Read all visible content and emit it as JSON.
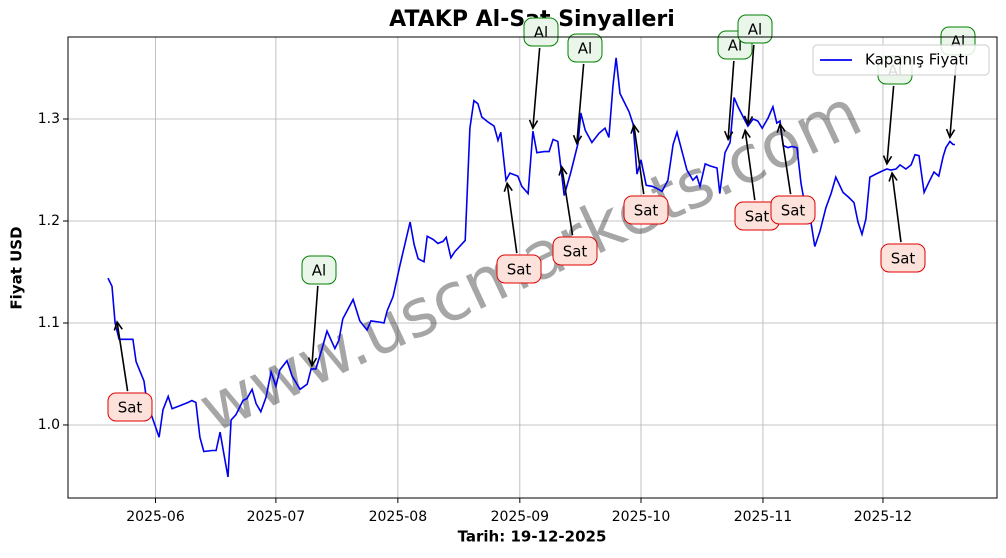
{
  "chart_data": {
    "type": "line",
    "title": "ATAKP Al-Sat Sinyalleri",
    "xlabel": "Tarih: 19-12-2025",
    "ylabel": "Fiyat USD",
    "watermark": "www.uscmarkets.com",
    "legend": "upper right",
    "grid": true,
    "xlim": [
      -10.1,
      224.5
    ],
    "ylim": [
      0.9284,
      1.3804
    ],
    "xticks": [
      {
        "value": 12,
        "label": "2025-06"
      },
      {
        "value": 42.4,
        "label": "2025-07"
      },
      {
        "value": 73.2,
        "label": "2025-08"
      },
      {
        "value": 104,
        "label": "2025-09"
      },
      {
        "value": 134.6,
        "label": "2025-10"
      },
      {
        "value": 165.4,
        "label": "2025-11"
      },
      {
        "value": 195.7,
        "label": "2025-12"
      }
    ],
    "yticks": [
      {
        "value": 1,
        "label": "1.0"
      },
      1.1,
      1.2,
      1.3
    ],
    "x": [
      0,
      1,
      1.8,
      2.8,
      4.5,
      6.3,
      7.1,
      9.1,
      9.8,
      11.1,
      12.9,
      13.9,
      15.2,
      16.2,
      18.2,
      20.2,
      21.2,
      22.2,
      23.2,
      24.2,
      26.3,
      27.3,
      28.3,
      29.3,
      30.3,
      31.1,
      32.3,
      34.1,
      35.1,
      36.4,
      37.4,
      38.6,
      39.9,
      41.2,
      42.4,
      43.4,
      45.2,
      46.5,
      48.5,
      50.3,
      51.3,
      52.5,
      54,
      55.3,
      57.3,
      58.3,
      59.3,
      61.9,
      63.6,
      65.4,
      66.4,
      68.4,
      69.7,
      70.5,
      72,
      73.7,
      76.3,
      77.3,
      78.3,
      79.8,
      80.6,
      82.1,
      83.3,
      84.6,
      85.4,
      86.6,
      87.6,
      90.2,
      91.4,
      92.4,
      93.4,
      94.4,
      96,
      97.5,
      98.5,
      99.2,
      100.5,
      101.5,
      103.5,
      104.5,
      106.1,
      107.3,
      108.3,
      110.1,
      111.4,
      112.4,
      113.6,
      115.2,
      116.9,
      118.7,
      119.4,
      120.5,
      122.2,
      124,
      125.5,
      126.5,
      127.5,
      128.3,
      129.3,
      131.6,
      132.6,
      133.6,
      134.6,
      135.9,
      137.4,
      138.6,
      139.9,
      141.4,
      142.7,
      143.7,
      144.7,
      146.2,
      147.7,
      148.7,
      149.5,
      150.8,
      152,
      153.8,
      154.5,
      155.8,
      157.1,
      158.1,
      159.1,
      160.4,
      161.6,
      162.9,
      164.1,
      165.2,
      166.7,
      167.9,
      168.9,
      169.7,
      170.5,
      171.7,
      172.7,
      174,
      175,
      176.3,
      177.3,
      178.5,
      179.8,
      181.3,
      182.6,
      183.8,
      185.6,
      187.1,
      188.4,
      189.4,
      190.4,
      191.4,
      192.4,
      193.9,
      195.5,
      196.7,
      197.7,
      199,
      200,
      201.5,
      202.8,
      203.8,
      204.8,
      206.1,
      207.3,
      208.6,
      209.8,
      210.9,
      211.6,
      212.6,
      213.4,
      213.9
    ],
    "series": [
      {
        "name": "Kapanış Fiyatı",
        "color": "#0000ee",
        "values": [
          1.144,
          1.136,
          1.1,
          1.084,
          1.084,
          1.084,
          1.062,
          1.043,
          1.023,
          1.008,
          0.988,
          1.015,
          1.028,
          1.016,
          1.019,
          1.022,
          1.024,
          1.022,
          0.988,
          0.974,
          0.975,
          0.975,
          0.993,
          0.971,
          0.949,
          1.005,
          1.01,
          1.024,
          1.026,
          1.035,
          1.021,
          1.013,
          1.027,
          1.052,
          1.038,
          1.054,
          1.063,
          1.048,
          1.035,
          1.04,
          1.055,
          1.055,
          1.074,
          1.092,
          1.075,
          1.083,
          1.104,
          1.123,
          1.102,
          1.093,
          1.102,
          1.101,
          1.1,
          1.112,
          1.126,
          1.156,
          1.199,
          1.177,
          1.163,
          1.16,
          1.185,
          1.182,
          1.178,
          1.18,
          1.184,
          1.164,
          1.17,
          1.181,
          1.291,
          1.318,
          1.315,
          1.302,
          1.297,
          1.293,
          1.279,
          1.287,
          1.24,
          1.247,
          1.244,
          1.234,
          1.227,
          1.288,
          1.267,
          1.268,
          1.268,
          1.28,
          1.278,
          1.225,
          1.248,
          1.276,
          1.306,
          1.289,
          1.277,
          1.286,
          1.291,
          1.282,
          1.332,
          1.36,
          1.325,
          1.307,
          1.295,
          1.246,
          1.26,
          1.235,
          1.234,
          1.232,
          1.229,
          1.24,
          1.275,
          1.287,
          1.272,
          1.25,
          1.24,
          1.244,
          1.234,
          1.256,
          1.254,
          1.252,
          1.227,
          1.267,
          1.277,
          1.321,
          1.312,
          1.302,
          1.293,
          1.3,
          1.298,
          1.291,
          1.301,
          1.312,
          1.296,
          1.298,
          1.274,
          1.272,
          1.273,
          1.272,
          1.237,
          1.209,
          1.204,
          1.175,
          1.19,
          1.213,
          1.227,
          1.243,
          1.228,
          1.223,
          1.218,
          1.199,
          1.187,
          1.202,
          1.243,
          1.246,
          1.249,
          1.251,
          1.25,
          1.251,
          1.255,
          1.251,
          1.255,
          1.265,
          1.264,
          1.228,
          1.238,
          1.248,
          1.244,
          1.263,
          1.272,
          1.278,
          1.275,
          1.275
        ]
      }
    ],
    "annotations": [
      {
        "text": "Sat",
        "x": 2.3,
        "y": 1.101,
        "color": "red"
      },
      {
        "text": "Al",
        "x": 51.5,
        "y": 1.058,
        "color": "green"
      },
      {
        "text": "Sat",
        "x": 100.8,
        "y": 1.237,
        "color": "red"
      },
      {
        "text": "Al",
        "x": 107.3,
        "y": 1.291,
        "color": "green"
      },
      {
        "text": "Sat",
        "x": 114.6,
        "y": 1.253,
        "color": "red"
      },
      {
        "text": "Al",
        "x": 118.4,
        "y": 1.276,
        "color": "green"
      },
      {
        "text": "Sat",
        "x": 132.8,
        "y": 1.294,
        "color": "red"
      },
      {
        "text": "Al",
        "x": 156.6,
        "y": 1.28,
        "color": "green"
      },
      {
        "text": "Sat",
        "x": 160.9,
        "y": 1.289,
        "color": "red"
      },
      {
        "text": "Al",
        "x": 161.6,
        "y": 1.295,
        "color": "green"
      },
      {
        "text": "Sat",
        "x": 169.7,
        "y": 1.295,
        "color": "red"
      },
      {
        "text": "Al",
        "x": 196.7,
        "y": 1.256,
        "color": "green"
      },
      {
        "text": "Sat",
        "x": 198,
        "y": 1.247,
        "color": "red"
      },
      {
        "text": "Al",
        "x": 212.6,
        "y": 1.282,
        "color": "green"
      }
    ]
  }
}
